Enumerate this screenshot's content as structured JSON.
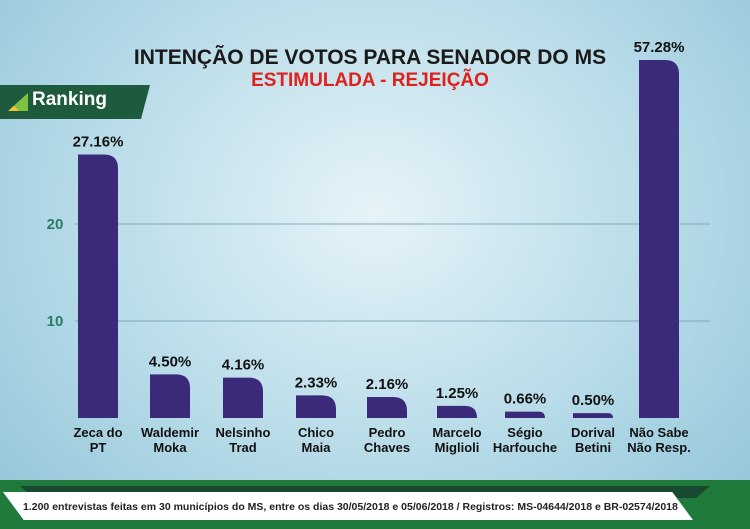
{
  "chart_data": {
    "type": "bar",
    "title": "INTENÇÃO DE VOTOS PARA SENADOR DO MS",
    "subtitle": "ESTIMULADA - REJEIÇÃO",
    "categories": [
      [
        "Zeca do",
        "PT"
      ],
      [
        "Waldemir",
        "Moka"
      ],
      [
        "Nelsinho",
        "Trad"
      ],
      [
        "Chico",
        "Maia"
      ],
      [
        "Pedro",
        "Chaves"
      ],
      [
        "Marcelo",
        "Miglioli"
      ],
      [
        "Ségio",
        "Harfouche"
      ],
      [
        "Dorival",
        "Betini"
      ],
      [
        "Não Sabe",
        "Não Resp."
      ]
    ],
    "values": [
      27.16,
      4.5,
      4.16,
      2.33,
      2.16,
      1.25,
      0.66,
      0.5,
      57.28
    ],
    "data_labels": [
      "27.16%",
      "4.50%",
      "4.16%",
      "2.33%",
      "2.16%",
      "1.25%",
      "0.66%",
      "0.50%",
      "57.28%"
    ],
    "yticks": [
      "10",
      "20"
    ],
    "ylim": [
      0,
      30
    ],
    "grid": true,
    "bar_color": "#3b2a7a"
  },
  "logo": {
    "text": "Ranking"
  },
  "footer": "1.200 entrevistas feitas em 30 municípios do MS, entre os dias 30/05/2018 e 05/06/2018 / Registros: MS-04644/2018 e BR-02574/2018"
}
